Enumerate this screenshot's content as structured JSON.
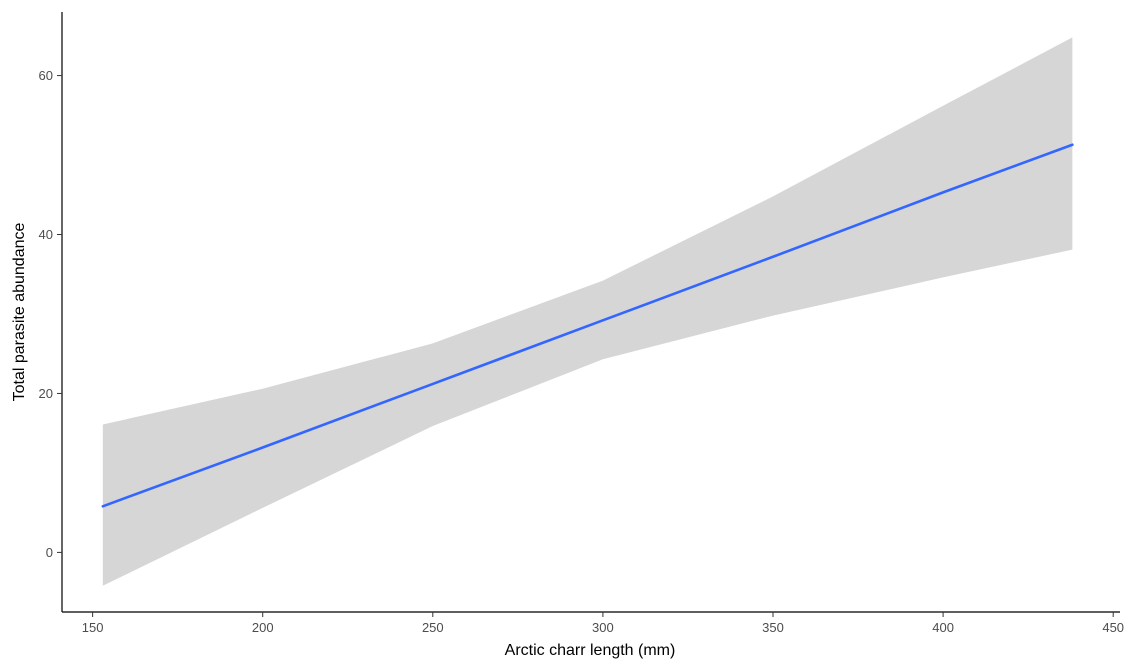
{
  "chart_data": {
    "type": "line",
    "title": "",
    "xlabel": "Arctic charr length (mm)",
    "ylabel": "Total parasite abundance",
    "xlim": [
      141,
      452
    ],
    "ylim": [
      -7.5,
      68
    ],
    "x_ticks": [
      150,
      200,
      250,
      300,
      350,
      400,
      450
    ],
    "y_ticks": [
      0,
      20,
      40,
      60
    ],
    "grid": false,
    "legend": "none",
    "colors": {
      "line": "#3366FF",
      "ribbon": "#D6D6D6",
      "axis": "#000000",
      "tick_label": "#4D4D4D"
    },
    "series": [
      {
        "x": [
          153,
          200,
          250,
          300,
          350,
          400,
          438
        ],
        "y": [
          5.8,
          13.2,
          21.2,
          29.2,
          37.2,
          45.3,
          51.3
        ],
        "ci_lower": [
          -4.2,
          5.6,
          15.9,
          24.3,
          29.8,
          34.6,
          38.1
        ],
        "ci_upper": [
          16.1,
          20.6,
          26.3,
          34.2,
          44.8,
          56.2,
          64.8
        ]
      }
    ]
  }
}
